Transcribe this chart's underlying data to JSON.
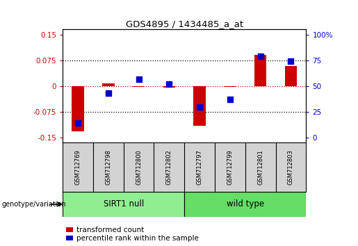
{
  "title": "GDS4895 / 1434485_a_at",
  "samples": [
    "GSM712769",
    "GSM712798",
    "GSM712800",
    "GSM712802",
    "GSM712797",
    "GSM712799",
    "GSM712801",
    "GSM712803"
  ],
  "transformed_counts": [
    -0.131,
    0.008,
    -0.003,
    -0.005,
    -0.115,
    -0.002,
    0.09,
    0.058
  ],
  "percentile_ranks_pct": [
    14,
    43,
    57,
    52,
    30,
    37,
    79,
    74
  ],
  "group_info": [
    {
      "start": 0,
      "end": 3,
      "label": "SIRT1 null",
      "color": "#90EE90"
    },
    {
      "start": 4,
      "end": 7,
      "label": "wild type",
      "color": "#66DD66"
    }
  ],
  "group_label": "genotype/variation",
  "left_yticks": [
    -0.15,
    -0.075,
    0,
    0.075,
    0.15
  ],
  "right_yticks": [
    0,
    25,
    50,
    75,
    100
  ],
  "left_color": "#CC0000",
  "right_color": "#0000CC",
  "bar_color": "#CC0000",
  "dot_color": "#0000CC",
  "zero_line_color": "#CC0000",
  "grid_color": "black",
  "sample_bg": "#D3D3D3",
  "legend_bar_label": "transformed count",
  "legend_dot_label": "percentile rank within the sample",
  "bar_width": 0.4,
  "dot_size": 35,
  "ylim_left": [
    -0.165,
    0.165
  ],
  "title_fontsize": 9.5
}
